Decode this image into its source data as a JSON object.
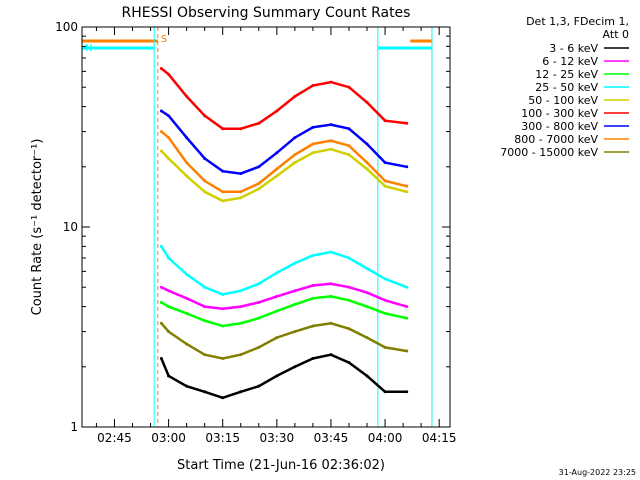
{
  "chart_data": {
    "type": "line",
    "title": "RHESSI Observing Summary Count Rates",
    "xlabel": "Start Time (21-Jun-16 02:36:02)",
    "ylabel": "Count Rate (s⁻¹ detector⁻¹)",
    "xscale": "time",
    "yscale": "log",
    "xlim": [
      "02:36",
      "04:18"
    ],
    "ylim": [
      1,
      100
    ],
    "x_ticks": [
      "02:45",
      "03:00",
      "03:15",
      "03:30",
      "03:45",
      "04:00",
      "04:15"
    ],
    "y_ticks": [
      "1",
      "10",
      "100"
    ],
    "grid": false,
    "legend_position": "top-right",
    "legend_header": [
      "Det 1,3, FDecim 1,",
      "Att 0"
    ],
    "series": [
      {
        "name": "3 - 6 keV",
        "color": "#000000",
        "x": [
          "02:58",
          "03:00",
          "03:05",
          "03:10",
          "03:15",
          "03:20",
          "03:25",
          "03:30",
          "03:35",
          "03:40",
          "03:45",
          "03:50",
          "03:55",
          "04:00",
          "04:06"
        ],
        "y": [
          2.2,
          1.8,
          1.6,
          1.5,
          1.4,
          1.5,
          1.6,
          1.8,
          2.0,
          2.2,
          2.3,
          2.1,
          1.8,
          1.5,
          1.5
        ]
      },
      {
        "name": "6 - 12 keV",
        "color": "#ff00ff",
        "x": [
          "02:58",
          "03:00",
          "03:05",
          "03:10",
          "03:15",
          "03:20",
          "03:25",
          "03:30",
          "03:35",
          "03:40",
          "03:45",
          "03:50",
          "03:55",
          "04:00",
          "04:06"
        ],
        "y": [
          5.0,
          4.8,
          4.4,
          4.0,
          3.9,
          4.0,
          4.2,
          4.5,
          4.8,
          5.1,
          5.2,
          5.0,
          4.7,
          4.3,
          4.0
        ]
      },
      {
        "name": "12 - 25 keV",
        "color": "#00ff00",
        "x": [
          "02:58",
          "03:00",
          "03:05",
          "03:10",
          "03:15",
          "03:20",
          "03:25",
          "03:30",
          "03:35",
          "03:40",
          "03:45",
          "03:50",
          "03:55",
          "04:00",
          "04:06"
        ],
        "y": [
          4.2,
          4.0,
          3.7,
          3.4,
          3.2,
          3.3,
          3.5,
          3.8,
          4.1,
          4.4,
          4.5,
          4.3,
          4.0,
          3.7,
          3.5
        ]
      },
      {
        "name": "25 - 50 keV",
        "color": "#00ffff",
        "x": [
          "02:58",
          "03:00",
          "03:05",
          "03:10",
          "03:15",
          "03:20",
          "03:25",
          "03:30",
          "03:35",
          "03:40",
          "03:45",
          "03:50",
          "03:55",
          "04:00",
          "04:06"
        ],
        "y": [
          8.0,
          7.0,
          5.8,
          5.0,
          4.6,
          4.8,
          5.2,
          5.9,
          6.6,
          7.2,
          7.5,
          7.0,
          6.2,
          5.5,
          5.0
        ]
      },
      {
        "name": "50 - 100 keV",
        "color": "#d0d000",
        "x": [
          "02:58",
          "03:00",
          "03:05",
          "03:10",
          "03:15",
          "03:20",
          "03:25",
          "03:30",
          "03:35",
          "03:40",
          "03:45",
          "03:50",
          "03:55",
          "04:00",
          "04:06"
        ],
        "y": [
          24,
          22,
          18,
          15,
          13.5,
          14,
          15.5,
          18,
          21,
          23.5,
          24.5,
          23,
          19.5,
          16,
          15
        ]
      },
      {
        "name": "100 - 300 keV",
        "color": "#ff0000",
        "x": [
          "02:58",
          "03:00",
          "03:05",
          "03:10",
          "03:15",
          "03:20",
          "03:25",
          "03:30",
          "03:35",
          "03:40",
          "03:45",
          "03:50",
          "03:55",
          "04:00",
          "04:06"
        ],
        "y": [
          62,
          58,
          45,
          36,
          31,
          31,
          33,
          38,
          45,
          51,
          53,
          50,
          42,
          34,
          33
        ]
      },
      {
        "name": "300 - 800 keV",
        "color": "#0000ff",
        "x": [
          "02:58",
          "03:00",
          "03:05",
          "03:10",
          "03:15",
          "03:20",
          "03:25",
          "03:30",
          "03:35",
          "03:40",
          "03:45",
          "03:50",
          "03:55",
          "04:00",
          "04:06"
        ],
        "y": [
          38,
          36,
          28,
          22,
          19,
          18.5,
          20,
          23.5,
          28,
          31.5,
          32.5,
          31,
          26,
          21,
          20
        ]
      },
      {
        "name": "800 - 7000 keV",
        "color": "#ff8000",
        "x": [
          "02:58",
          "03:00",
          "03:05",
          "03:10",
          "03:15",
          "03:20",
          "03:25",
          "03:30",
          "03:35",
          "03:40",
          "03:45",
          "03:50",
          "03:55",
          "04:00",
          "04:06"
        ],
        "y": [
          30,
          28,
          21,
          17,
          15,
          15,
          16.5,
          19.5,
          23,
          26,
          27,
          25.5,
          21,
          17,
          16
        ]
      },
      {
        "name": "7000 - 15000 keV",
        "color": "#808000",
        "x": [
          "02:58",
          "03:00",
          "03:05",
          "03:10",
          "03:15",
          "03:20",
          "03:25",
          "03:30",
          "03:35",
          "03:40",
          "03:45",
          "03:50",
          "03:55",
          "04:00",
          "04:06"
        ],
        "y": [
          3.3,
          3.0,
          2.6,
          2.3,
          2.2,
          2.3,
          2.5,
          2.8,
          3.0,
          3.2,
          3.3,
          3.1,
          2.8,
          2.5,
          2.4
        ]
      }
    ],
    "annotations": [
      {
        "text": "S",
        "color": "#ff8000"
      },
      {
        "text": "N",
        "color": "#00ffff"
      }
    ],
    "markers": [
      {
        "label": "S",
        "color": "#ff8000",
        "state_bars": [
          [
            "02:36",
            "02:57"
          ],
          [
            "04:07",
            "04:13"
          ]
        ],
        "lines": [
          "02:57",
          "04:13"
        ]
      },
      {
        "label": "N",
        "color": "#00ffff",
        "state_bars": [
          [
            "02:36",
            "02:56"
          ],
          [
            "03:58",
            "04:13"
          ]
        ],
        "lines": [
          "02:36",
          "02:56",
          "03:58",
          "04:13"
        ]
      }
    ]
  },
  "footer": {
    "timestamp": "31-Aug-2022 23:25"
  }
}
